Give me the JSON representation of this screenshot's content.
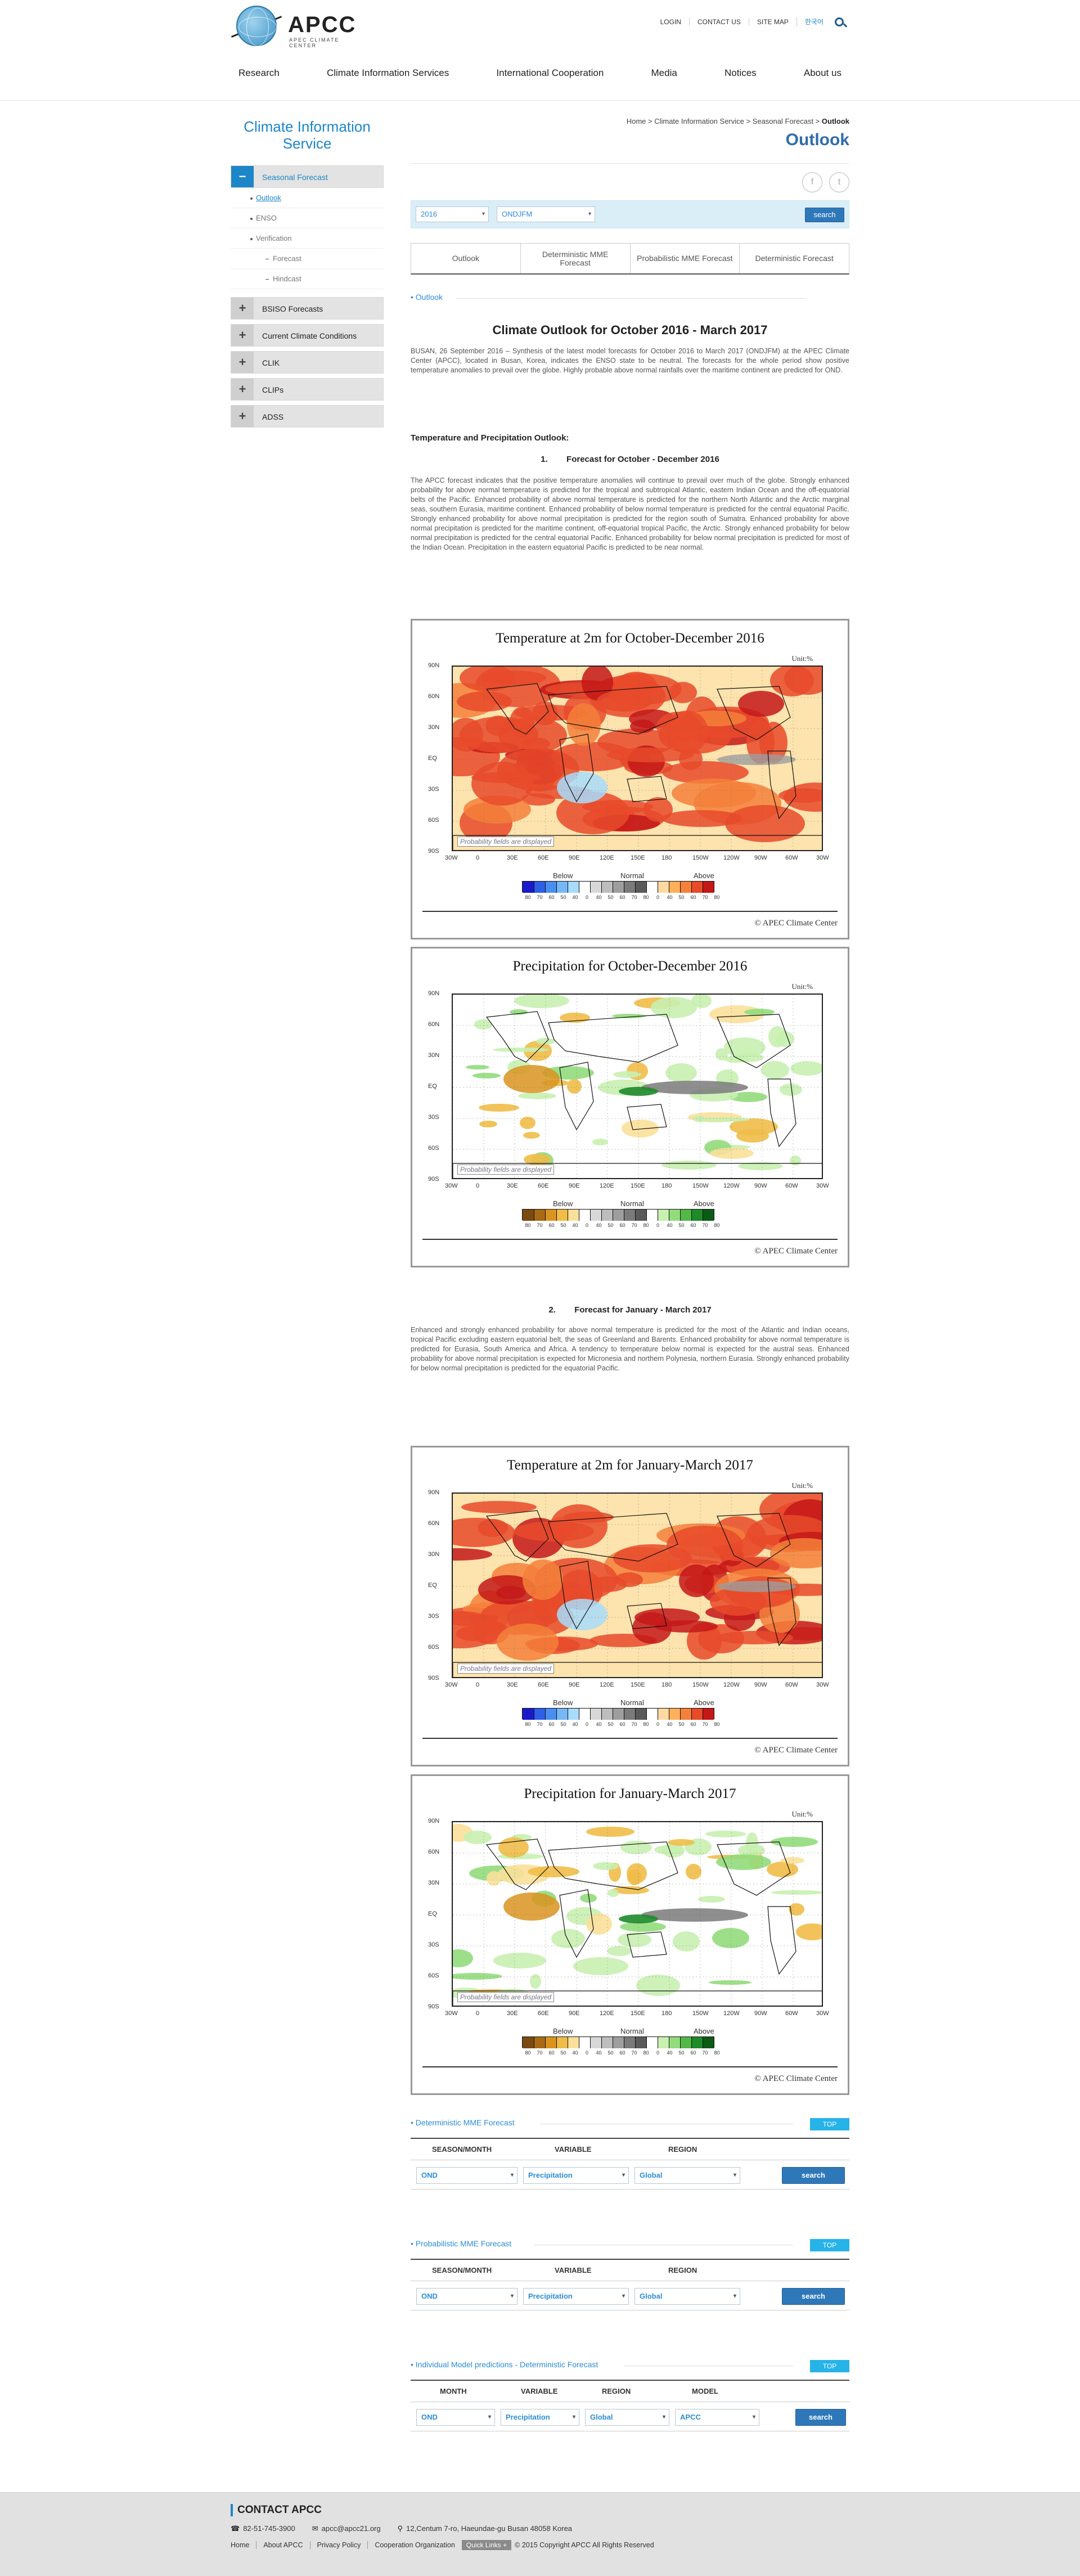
{
  "header": {
    "logo_name": "APCC",
    "logo_sub": "APEC CLIMATE CENTER",
    "util": [
      "LOGIN",
      "CONTACT US",
      "SITE MAP",
      "한국어"
    ],
    "nav": [
      "Research",
      "Climate Information Services",
      "International Cooperation",
      "Media",
      "Notices",
      "About us"
    ]
  },
  "sidebar": {
    "title_line1": "Climate Information",
    "title_line2": "Service",
    "seasonal": "Seasonal Forecast",
    "sub_outlook": "Outlook",
    "sub_enso": "ENSO",
    "sub_verification": "Verification",
    "sub_forecast": "Forecast",
    "sub_hindcast": "Hindcast",
    "bsiso": "BSISO Forecasts",
    "current": "Current Climate Conditions",
    "clik": "CLIK",
    "clips": "CLIPs",
    "adss": "ADSS"
  },
  "breadcrumb": {
    "path": "Home > Climate Information Service > Seasonal Forecast > ",
    "current": "Outlook"
  },
  "page_title": "Outlook",
  "filter": {
    "year": "2016",
    "season": "ONDJFM",
    "search": "search"
  },
  "tabs": [
    "Outlook",
    "Deterministic MME Forecast",
    "Probabilistic MME Forecast",
    "Deterministic Forecast"
  ],
  "outlook_head": "Outlook",
  "main_title": "Climate Outlook for October 2016 - March 2017",
  "intro": "BUSAN, 26 September 2016 – Synthesis of the latest model forecasts for October 2016 to March 2017 (ONDJFM) at the APEC Climate Center (APCC), located in Busan, Korea, indicates the ENSO state to be neutral. The forecasts for the whole period show positive temperature anomalies to prevail over the globe. Highly probable above normal rainfalls over the maritime continent are predicted for OND.",
  "tp_heading": "Temperature and Precipitation Outlook:",
  "f1_num": "1.",
  "f1_title": "Forecast for October - December 2016",
  "f1_text": "The APCC forecast indicates that the positive temperature anomalies will continue to prevail over much of the globe. Strongly enhanced probability for above normal temperature is predicted for the tropical and subtropical Atlantic, eastern Indian Ocean and the off-equatorial belts of the Pacific. Enhanced probability of above normal temperature is predicted for the northern North Atlantic and the Arctic marginal seas, southern Eurasia, maritime continent. Enhanced probability of below normal temperature is predicted for the central equatorial Pacific. Strongly enhanced probability for above normal precipitation is predicted for the region south of Sumatra. Enhanced probability for above normal precipitation is predicted for the maritime continent, off-equatorial tropical Pacific, the Arctic. Strongly enhanced probability for below normal precipitation is predicted for the central equatorial Pacific. Enhanced probability for below normal precipitation is predicted for most of the Indian Ocean. Precipitation in the eastern equatorial Pacific is predicted to be near normal.",
  "f2_num": "2.",
  "f2_title": "Forecast for January - March 2017",
  "f2_text": "Enhanced and strongly enhanced probability for above normal temperature is predicted for the most of the Atlantic and Indian oceans, tropical Pacific excluding eastern equatorial belt, the seas of Greenland and Barents. Enhanced probability for above normal temperature is predicted for Eurasia, South America and Africa. A tendency to temperature below normal is expected for the austral seas. Enhanced probability for above normal precipitation is expected for Micronesia and northern Polynesia, northern Eurasia. Strongly enhanced probability for below normal precipitation is predicted for the equatorial Pacific.",
  "figures": [
    {
      "title": "Temperature at 2m for October-December 2016"
    },
    {
      "title": "Precipitation for October-December 2016"
    },
    {
      "title": "Temperature at 2m for January-March 2017"
    },
    {
      "title": "Precipitation for January-March 2017"
    }
  ],
  "fig_common": {
    "unit": "Unit:%",
    "prob_note": "Probability fields are displayed",
    "below": "Below",
    "normal": "Normal",
    "above": "Above",
    "credit": "© APEC Climate Center",
    "lat_labels": [
      "90N",
      "60N",
      "30N",
      "EQ",
      "30S",
      "60S",
      "90S"
    ],
    "lon_labels": [
      "30W",
      "0",
      "30E",
      "60E",
      "90E",
      "120E",
      "150E",
      "180",
      "150W",
      "120W",
      "90W",
      "60W",
      "30W"
    ],
    "cb_numbers": [
      "80",
      "70",
      "60",
      "50",
      "40",
      "0",
      "40",
      "50",
      "60",
      "70",
      "80",
      "0",
      "40",
      "50",
      "60",
      "70",
      "80"
    ],
    "temp_colors": [
      "#1a1acb",
      "#2f5fe6",
      "#4a8ef0",
      "#76b8f6",
      "#a8dcfb",
      "#ffffff",
      "#d8d8d8",
      "#bdbdbd",
      "#9e9e9e",
      "#7a7a7a",
      "#5a5a5a",
      "#ffffff",
      "#ffd9a0",
      "#ffb05a",
      "#f5803a",
      "#e84a2a",
      "#c41818"
    ],
    "prec_colors": [
      "#7a4a10",
      "#a86a14",
      "#d99420",
      "#f0bc48",
      "#fbe09a",
      "#ffffff",
      "#d8d8d8",
      "#bdbdbd",
      "#9e9e9e",
      "#7a7a7a",
      "#5a5a5a",
      "#ffffff",
      "#c8f0b0",
      "#92dc7c",
      "#52b848",
      "#1e8a2a",
      "#0c5a16"
    ]
  },
  "forms": [
    {
      "title": "Deterministic MME Forecast",
      "top": "TOP",
      "headers": [
        "SEASON/MONTH",
        "VARIABLE",
        "REGION"
      ],
      "values": [
        "OND",
        "Precipitation",
        "Global"
      ],
      "search": "search"
    },
    {
      "title": "Probabilistic MME Forecast",
      "top": "TOP",
      "headers": [
        "SEASON/MONTH",
        "VARIABLE",
        "REGION"
      ],
      "values": [
        "OND",
        "Precipitation",
        "Global"
      ],
      "search": "search"
    },
    {
      "title": "Individual Model predictions - Deterministic Forecast",
      "top": "TOP",
      "headers": [
        "MONTH",
        "VARIABLE",
        "REGION",
        "MODEL"
      ],
      "values": [
        "OND",
        "Precipitation",
        "Global",
        "APCC"
      ],
      "search": "search"
    }
  ],
  "footer": {
    "title": "CONTACT APCC",
    "phone": "82-51-745-3900",
    "email": "apcc@apcc21.org",
    "address": "12,Centum 7-ro, Haeundae-gu Busan 48058 Korea",
    "links": [
      "Home",
      "About APCC",
      "Privacy Policy",
      "Cooperation Organization"
    ],
    "quick": "Quick Links +",
    "copyright": "© 2015 Copyright APCC All Rights Reserved"
  },
  "colors": {
    "accent": "#1c86c8",
    "title_blue": "#2f6cad",
    "button": "#2e78b9",
    "top_btn": "#26b3e8"
  }
}
